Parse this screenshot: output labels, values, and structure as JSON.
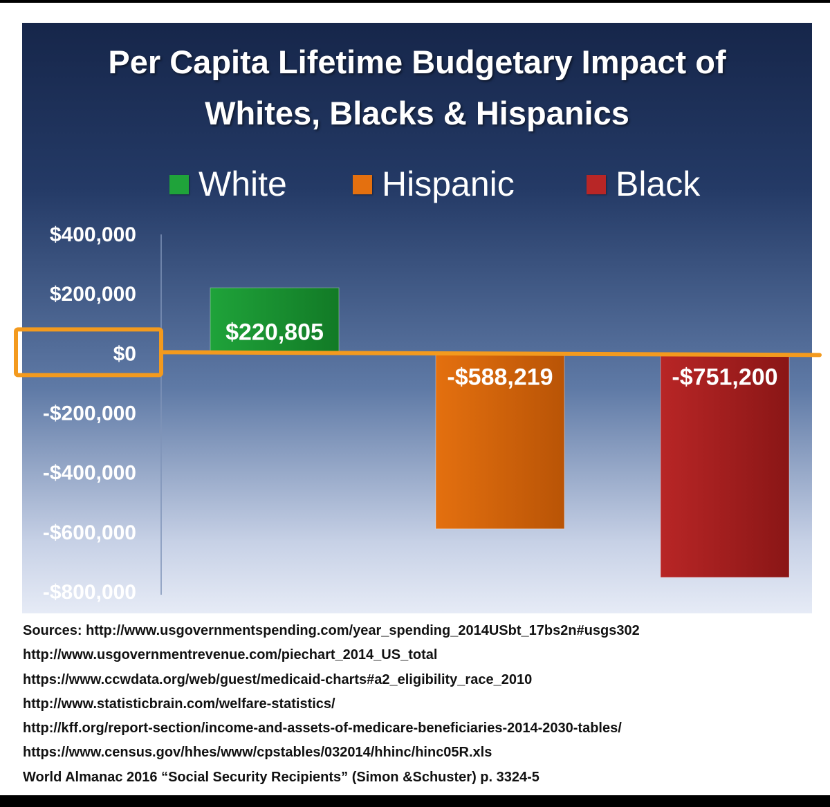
{
  "chart_data": {
    "type": "bar",
    "title": "Per Capita Lifetime Budgetary Impact of Whites, Blacks & Hispanics",
    "title_lines": [
      "Per Capita Lifetime Budgetary Impact of",
      "Whites, Blacks & Hispanics"
    ],
    "categories": [
      "White",
      "Hispanic",
      "Black"
    ],
    "values": [
      220805,
      -588219,
      -751200
    ],
    "value_labels": [
      "$220,805",
      "-$588,219",
      "-$751,200"
    ],
    "colors": [
      "#1fa33a",
      "#e4700f",
      "#b82626"
    ],
    "y_ticks": [
      400000,
      200000,
      0,
      -200000,
      -400000,
      -600000,
      -800000
    ],
    "y_tick_labels": [
      "$400,000",
      "$200,000",
      "$0",
      "-$200,000",
      "-$400,000",
      "-$600,000",
      "-$800,000"
    ],
    "ylim": [
      -800000,
      400000
    ],
    "highlight_value": 0,
    "highlight_color": "#f39a1e",
    "legend": [
      {
        "label": "White",
        "color": "#1fa33a"
      },
      {
        "label": "Hispanic",
        "color": "#e4700f"
      },
      {
        "label": "Black",
        "color": "#b82626"
      }
    ],
    "legend_position": "top",
    "xlabel": "",
    "ylabel": ""
  },
  "sources": [
    "Sources: http://www.usgovernmentspending.com/year_spending_2014USbt_17bs2n#usgs302",
    "http://www.usgovernmentrevenue.com/piechart_2014_US_total",
    "https://www.ccwdata.org/web/guest/medicaid-charts#a2_eligibility_race_2010",
    "http://www.statisticbrain.com/welfare-statistics/",
    "http://kff.org/report-section/income-and-assets-of-medicare-beneficiaries-2014-2030-tables/",
    "https://www.census.gov/hhes/www/cpstables/032014/hhinc/hinc05R.xls",
    "World Almanac 2016 “Social Security Recipients” (Simon &Schuster) p. 3324-5"
  ]
}
